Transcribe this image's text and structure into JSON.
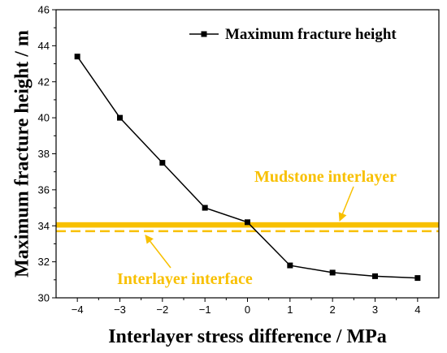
{
  "chart_data": {
    "type": "line",
    "xlabel": "Interlayer stress difference / MPa",
    "ylabel": "Maximum fracture height / m",
    "xlim": [
      -4.5,
      4.5
    ],
    "ylim": [
      30,
      46
    ],
    "x_ticks": [
      -4,
      -3,
      -2,
      -1,
      0,
      1,
      2,
      3,
      4
    ],
    "x_tick_labels": [
      "−4",
      "−3",
      "−2",
      "−1",
      "0",
      "1",
      "2",
      "3",
      "4"
    ],
    "y_ticks": [
      30,
      32,
      34,
      36,
      38,
      40,
      42,
      44,
      46
    ],
    "y_tick_labels": [
      "30",
      "32",
      "34",
      "36",
      "38",
      "40",
      "42",
      "44",
      "46"
    ],
    "grid": false,
    "legend_position": "top-right",
    "series": [
      {
        "name": "Maximum fracture height",
        "color": "#000000",
        "marker": "square",
        "x": [
          -4,
          -3,
          -2,
          -1,
          0,
          1,
          2,
          3,
          4
        ],
        "y": [
          43.4,
          40.0,
          37.5,
          35.0,
          34.2,
          31.8,
          31.4,
          31.2,
          31.1
        ]
      }
    ],
    "bands": [
      {
        "label": "Mudstone interlayer",
        "y_from": 33.9,
        "y_to": 34.2,
        "color": "#f8c000"
      }
    ],
    "reference_lines": [
      {
        "label": "Interlayer interface",
        "y": 33.7,
        "style": "dashed",
        "color": "#f8c000"
      }
    ],
    "annotations": [
      {
        "text": "Mudstone interlayer",
        "color": "#f8c000",
        "points_to": "Mudstone interlayer",
        "anchor_data": [
          1.3,
          36.7
        ],
        "target_data": [
          2.2,
          34.1
        ]
      },
      {
        "text": "Interlayer interface",
        "color": "#f8c000",
        "points_to": "Interlayer interface",
        "anchor_data": [
          -1.0,
          31.0
        ],
        "target_data": [
          -1.8,
          33.7
        ]
      }
    ]
  }
}
